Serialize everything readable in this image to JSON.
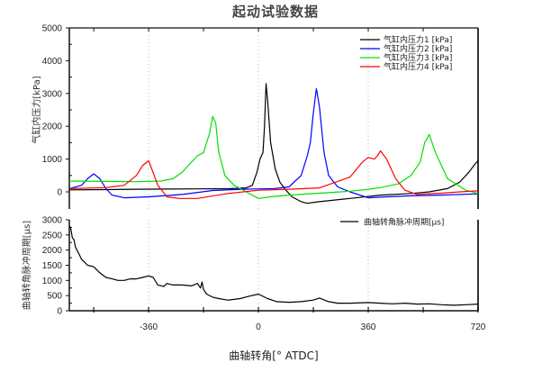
{
  "title": "起动试验数据",
  "xlabel": "曲轴转角[° ATDC]",
  "chart_data": [
    {
      "type": "line",
      "title": "起动试验数据",
      "xlabel": "曲轴转角[° ATDC]",
      "ylabel": "气缸内压力[kPa]",
      "xlim": [
        -620,
        720
      ],
      "ylim": [
        -500,
        5000
      ],
      "xticks": [
        -360,
        0,
        360,
        720
      ],
      "xticks_minor": [
        -540,
        -180,
        180,
        540
      ],
      "yticks": [
        0,
        1000,
        2000,
        3000,
        4000,
        5000
      ],
      "grid": "vertical dotted at -360, 0, 360",
      "legend_position": "upper right",
      "series": [
        {
          "name": "气缸内压力1 [kPa]",
          "color": "#000000",
          "x": [
            -620,
            -500,
            -400,
            -300,
            -200,
            -100,
            -40,
            -20,
            -5,
            5,
            15,
            20,
            25,
            30,
            40,
            55,
            70,
            90,
            110,
            140,
            160,
            200,
            300,
            400,
            500,
            560,
            620,
            660,
            690,
            710,
            720
          ],
          "values": [
            60,
            70,
            80,
            85,
            90,
            95,
            120,
            200,
            600,
            1000,
            1200,
            2000,
            3300,
            2800,
            1500,
            700,
            300,
            50,
            -150,
            -300,
            -350,
            -300,
            -200,
            -100,
            -50,
            0,
            100,
            300,
            600,
            850,
            950
          ]
        },
        {
          "name": "气缸内压力2 [kPa]",
          "color": "#0000ff",
          "x": [
            -620,
            -580,
            -560,
            -540,
            -520,
            -500,
            -480,
            -440,
            -360,
            -250,
            -150,
            -50,
            0,
            50,
            100,
            140,
            160,
            170,
            180,
            190,
            200,
            215,
            230,
            260,
            300,
            360,
            420,
            500,
            600,
            720
          ],
          "values": [
            100,
            200,
            400,
            550,
            400,
            100,
            -100,
            -180,
            -150,
            -80,
            40,
            80,
            90,
            95,
            150,
            500,
            1100,
            1500,
            2400,
            3150,
            2600,
            1200,
            500,
            150,
            0,
            -180,
            -150,
            -120,
            -100,
            -60
          ]
        },
        {
          "name": "气缸内压力3 [kPa]",
          "color": "#00e000",
          "x": [
            -620,
            -500,
            -400,
            -320,
            -280,
            -250,
            -230,
            -200,
            -180,
            -160,
            -150,
            -140,
            -130,
            -110,
            -80,
            -40,
            0,
            40,
            100,
            200,
            300,
            360,
            400,
            460,
            500,
            530,
            545,
            560,
            580,
            620,
            680,
            720
          ],
          "values": [
            330,
            320,
            310,
            330,
            400,
            600,
            800,
            1100,
            1200,
            1800,
            2300,
            2100,
            1200,
            500,
            200,
            0,
            -200,
            -150,
            -100,
            -40,
            20,
            80,
            130,
            250,
            500,
            900,
            1500,
            1750,
            1200,
            400,
            50,
            -50
          ]
        },
        {
          "name": "气缸内压力4 [kPa]",
          "color": "#ff0000",
          "x": [
            -620,
            -500,
            -440,
            -400,
            -380,
            -360,
            -350,
            -330,
            -300,
            -260,
            -200,
            -100,
            0,
            100,
            200,
            300,
            340,
            360,
            380,
            390,
            400,
            420,
            450,
            480,
            520,
            600,
            660,
            720
          ],
          "values": [
            100,
            130,
            200,
            500,
            800,
            950,
            700,
            200,
            -150,
            -200,
            -200,
            -50,
            50,
            80,
            120,
            450,
            900,
            1050,
            1000,
            1100,
            1250,
            1000,
            400,
            50,
            -80,
            -40,
            0,
            30
          ]
        }
      ]
    },
    {
      "type": "line",
      "ylabel": "曲轴转角脉冲周期[μs]",
      "xlabel": "曲轴转角[° ATDC]",
      "xlim": [
        -620,
        720
      ],
      "ylim": [
        0,
        3000
      ],
      "xticks": [
        -360,
        0,
        360,
        720
      ],
      "yticks": [
        0,
        500,
        1000,
        1500,
        2000,
        2500,
        3000
      ],
      "legend_position": "upper right",
      "series": [
        {
          "name": "曲轴转角脉冲周期[μs]",
          "color": "#000000",
          "x": [
            -620,
            -615,
            -610,
            -605,
            -600,
            -590,
            -580,
            -560,
            -540,
            -520,
            -500,
            -480,
            -460,
            -440,
            -420,
            -400,
            -380,
            -360,
            -345,
            -330,
            -310,
            -300,
            -280,
            -250,
            -220,
            -200,
            -190,
            -185,
            -180,
            -170,
            -150,
            -130,
            -100,
            -60,
            -30,
            0,
            30,
            60,
            100,
            140,
            180,
            200,
            230,
            260,
            300,
            360,
            400,
            440,
            480,
            520,
            560,
            600,
            640,
            680,
            720
          ],
          "values": [
            2800,
            2700,
            2400,
            2350,
            2100,
            1900,
            1700,
            1500,
            1450,
            1250,
            1100,
            1050,
            1000,
            1000,
            1050,
            1050,
            1100,
            1150,
            1100,
            850,
            800,
            900,
            850,
            850,
            820,
            900,
            750,
            950,
            700,
            550,
            450,
            400,
            350,
            400,
            480,
            550,
            400,
            300,
            280,
            300,
            350,
            420,
            300,
            250,
            250,
            270,
            250,
            230,
            250,
            220,
            230,
            200,
            180,
            200,
            220
          ]
        }
      ]
    }
  ],
  "upper_yticks": [
    "0",
    "1000",
    "2000",
    "3000",
    "4000",
    "5000"
  ],
  "lower_yticks": [
    "0",
    "500",
    "1000",
    "1500",
    "2000",
    "2500",
    "3000"
  ],
  "xtick_labels": [
    "-360",
    "0",
    "360",
    "720"
  ],
  "upper_ylabel": "气缸内压力[kPa]",
  "lower_ylabel": "曲轴转角脉冲周期[μs]"
}
